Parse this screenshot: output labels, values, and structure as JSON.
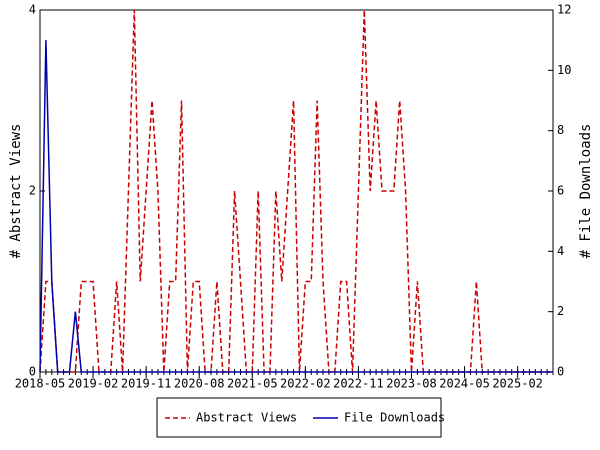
{
  "chart_data": {
    "type": "line",
    "categories": [
      "2018-05",
      null,
      null,
      null,
      null,
      null,
      null,
      null,
      null,
      "2019-02",
      null,
      null,
      null,
      null,
      null,
      null,
      null,
      null,
      "2019-11",
      null,
      null,
      null,
      null,
      null,
      null,
      null,
      null,
      "2020-08",
      null,
      null,
      null,
      null,
      null,
      null,
      null,
      null,
      "2021-05",
      null,
      null,
      null,
      null,
      null,
      null,
      null,
      null,
      "2022-02",
      null,
      null,
      null,
      null,
      null,
      null,
      null,
      null,
      "2022-11",
      null,
      null,
      null,
      null,
      null,
      null,
      null,
      null,
      "2023-08",
      null,
      null,
      null,
      null,
      null,
      null,
      null,
      null,
      "2024-05",
      null,
      null,
      null,
      null,
      null,
      null,
      null,
      null,
      "2025-02",
      null,
      null,
      null,
      null,
      null,
      null
    ],
    "y_label": "# Abstract Views",
    "y2_label": "# File Downloads",
    "ylim": [
      0,
      4
    ],
    "yticks": [
      0,
      2,
      4
    ],
    "y2lim": [
      0,
      12
    ],
    "y2ticks": [
      0,
      2,
      4,
      6,
      8,
      10,
      12
    ],
    "legend": "bottom",
    "series": [
      {
        "name": "Abstract Views",
        "color": "#cc0000",
        "dashed": true,
        "values": [
          0,
          1,
          1,
          0,
          0,
          0,
          0,
          1,
          1,
          1,
          0,
          0,
          0,
          1,
          0,
          2,
          4,
          1,
          2,
          3,
          2,
          0,
          1,
          1,
          3,
          0,
          1,
          1,
          0,
          0,
          1,
          0,
          0,
          2,
          1,
          0,
          0,
          2,
          0,
          0,
          2,
          1,
          2,
          3,
          0,
          1,
          1,
          3,
          1,
          0,
          0,
          1,
          1,
          0,
          2,
          4,
          2,
          3,
          2,
          2,
          2,
          3,
          2,
          0,
          1,
          0,
          0,
          0,
          0,
          0,
          0,
          0,
          0,
          0,
          1,
          0,
          0,
          0,
          0,
          0,
          0,
          0,
          0,
          0,
          0,
          0,
          0,
          0
        ]
      },
      {
        "name": "File Downloads",
        "color": "#0000aa",
        "dashed": false,
        "axis": "y2",
        "values": [
          0,
          11,
          3,
          0,
          0,
          0,
          2,
          0,
          0,
          0,
          0,
          0,
          0,
          0,
          0,
          0,
          0,
          0,
          0,
          0,
          0,
          0,
          0,
          0,
          0,
          0,
          0,
          0,
          0,
          0,
          0,
          0,
          0,
          0,
          0,
          0,
          0,
          0,
          0,
          0,
          0,
          0,
          0,
          0,
          0,
          0,
          0,
          0,
          0,
          0,
          0,
          0,
          0,
          0,
          0,
          0,
          0,
          0,
          0,
          0,
          0,
          0,
          0,
          0,
          0,
          0,
          0,
          0,
          0,
          0,
          0,
          0,
          0,
          0,
          0,
          0,
          0,
          0,
          0,
          0,
          0,
          0,
          0,
          0,
          0,
          0,
          0,
          0
        ]
      }
    ]
  }
}
